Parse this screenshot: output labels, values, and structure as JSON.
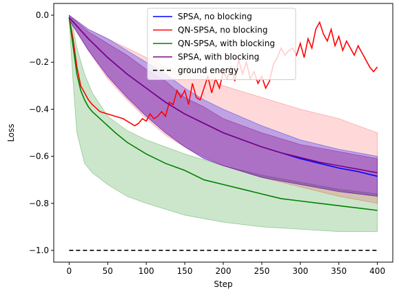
{
  "chart_data": {
    "type": "line",
    "title": "",
    "xlabel": "Step",
    "ylabel": "Loss",
    "xlim": [
      -20,
      420
    ],
    "ylim": [
      -1.05,
      0.05
    ],
    "x_ticks": [
      0,
      50,
      100,
      150,
      200,
      250,
      300,
      350,
      400
    ],
    "y_ticks": [
      0.0,
      -0.2,
      -0.4,
      -0.6,
      -0.8,
      -1.0
    ],
    "x_tick_labels": [
      "0",
      "50",
      "100",
      "150",
      "200",
      "250",
      "300",
      "350",
      "400"
    ],
    "y_tick_labels": [
      "0.0",
      "−0.2",
      "−0.4",
      "−0.6",
      "−0.8",
      "−1.0"
    ],
    "grid": false,
    "legend_position": "top-center",
    "bands": [
      {
        "series": "QN-SPSA, with blocking",
        "color": "#008000",
        "opacity": 0.2,
        "x": [
          0,
          5,
          10,
          20,
          30,
          50,
          75,
          100,
          150,
          200,
          250,
          300,
          350,
          400
        ],
        "lower": [
          -0.02,
          -0.28,
          -0.5,
          -0.63,
          -0.67,
          -0.72,
          -0.77,
          -0.8,
          -0.85,
          -0.88,
          -0.9,
          -0.91,
          -0.92,
          -0.92
        ],
        "upper": [
          -0.01,
          -0.05,
          -0.14,
          -0.25,
          -0.33,
          -0.43,
          -0.49,
          -0.53,
          -0.59,
          -0.64,
          -0.68,
          -0.71,
          -0.74,
          -0.76
        ]
      },
      {
        "series": "QN-SPSA, no blocking",
        "color": "#ff0000",
        "opacity": 0.15,
        "x": [
          0,
          25,
          50,
          75,
          100,
          125,
          150,
          175,
          200,
          250,
          300,
          350,
          400
        ],
        "lower": [
          -0.02,
          -0.15,
          -0.27,
          -0.36,
          -0.44,
          -0.51,
          -0.56,
          -0.6,
          -0.64,
          -0.69,
          -0.73,
          -0.77,
          -0.8
        ],
        "upper": [
          0.0,
          -0.06,
          -0.1,
          -0.14,
          -0.18,
          -0.22,
          -0.24,
          -0.26,
          -0.3,
          -0.35,
          -0.4,
          -0.44,
          -0.5
        ]
      },
      {
        "series": "SPSA, no blocking",
        "color": "#0000ff",
        "opacity": 0.25,
        "x": [
          0,
          25,
          50,
          75,
          100,
          125,
          150,
          175,
          200,
          250,
          300,
          350,
          400
        ],
        "lower": [
          -0.02,
          -0.15,
          -0.26,
          -0.35,
          -0.43,
          -0.5,
          -0.56,
          -0.61,
          -0.64,
          -0.69,
          -0.72,
          -0.75,
          -0.77
        ],
        "upper": [
          0.0,
          -0.06,
          -0.1,
          -0.15,
          -0.2,
          -0.25,
          -0.31,
          -0.36,
          -0.4,
          -0.47,
          -0.53,
          -0.57,
          -0.6
        ]
      },
      {
        "series": "SPSA, with blocking",
        "color": "#800080",
        "opacity": 0.3,
        "x": [
          0,
          25,
          50,
          75,
          100,
          125,
          150,
          175,
          200,
          250,
          300,
          350,
          400
        ],
        "lower": [
          -0.02,
          -0.15,
          -0.26,
          -0.35,
          -0.43,
          -0.5,
          -0.56,
          -0.61,
          -0.64,
          -0.69,
          -0.72,
          -0.75,
          -0.77
        ],
        "upper": [
          0.0,
          -0.07,
          -0.12,
          -0.17,
          -0.23,
          -0.28,
          -0.35,
          -0.39,
          -0.44,
          -0.5,
          -0.55,
          -0.58,
          -0.61
        ]
      }
    ],
    "series": [
      {
        "name": "SPSA, no blocking",
        "color": "#0000ff",
        "dashed": false,
        "x": [
          0,
          25,
          50,
          75,
          100,
          125,
          150,
          175,
          200,
          225,
          250,
          275,
          300,
          325,
          350,
          375,
          400
        ],
        "y": [
          -0.01,
          -0.1,
          -0.18,
          -0.25,
          -0.31,
          -0.37,
          -0.42,
          -0.46,
          -0.5,
          -0.53,
          -0.56,
          -0.585,
          -0.61,
          -0.63,
          -0.65,
          -0.665,
          -0.685
        ]
      },
      {
        "name": "QN-SPSA, no blocking",
        "color": "#ff0000",
        "dashed": false,
        "x": [
          0,
          5,
          10,
          15,
          20,
          25,
          30,
          40,
          50,
          60,
          70,
          80,
          85,
          90,
          95,
          100,
          105,
          110,
          115,
          120,
          125,
          130,
          135,
          140,
          145,
          150,
          155,
          160,
          165,
          170,
          175,
          180,
          185,
          190,
          195,
          200,
          205,
          210,
          215,
          220,
          225,
          230,
          235,
          240,
          245,
          250,
          255,
          260,
          265,
          270,
          275,
          280,
          285,
          290,
          295,
          300,
          305,
          310,
          315,
          320,
          325,
          330,
          335,
          340,
          345,
          350,
          355,
          360,
          365,
          370,
          375,
          380,
          385,
          390,
          395,
          400
        ],
        "y": [
          -0.01,
          -0.1,
          -0.22,
          -0.3,
          -0.33,
          -0.36,
          -0.38,
          -0.41,
          -0.42,
          -0.43,
          -0.44,
          -0.46,
          -0.47,
          -0.46,
          -0.44,
          -0.45,
          -0.42,
          -0.44,
          -0.43,
          -0.41,
          -0.43,
          -0.37,
          -0.38,
          -0.32,
          -0.35,
          -0.32,
          -0.38,
          -0.29,
          -0.35,
          -0.36,
          -0.31,
          -0.26,
          -0.33,
          -0.27,
          -0.31,
          -0.24,
          -0.27,
          -0.22,
          -0.28,
          -0.19,
          -0.25,
          -0.2,
          -0.27,
          -0.24,
          -0.29,
          -0.26,
          -0.31,
          -0.28,
          -0.21,
          -0.18,
          -0.14,
          -0.17,
          -0.15,
          -0.14,
          -0.17,
          -0.12,
          -0.18,
          -0.1,
          -0.14,
          -0.06,
          -0.03,
          -0.08,
          -0.11,
          -0.06,
          -0.13,
          -0.09,
          -0.15,
          -0.11,
          -0.14,
          -0.17,
          -0.13,
          -0.16,
          -0.19,
          -0.22,
          -0.24,
          -0.22
        ]
      },
      {
        "name": "QN-SPSA, with blocking",
        "color": "#008000",
        "dashed": false,
        "x": [
          0,
          5,
          10,
          15,
          20,
          25,
          30,
          40,
          50,
          60,
          75,
          100,
          125,
          150,
          175,
          200,
          225,
          250,
          275,
          300,
          325,
          350,
          375,
          400
        ],
        "y": [
          -0.01,
          -0.13,
          -0.25,
          -0.32,
          -0.36,
          -0.39,
          -0.41,
          -0.44,
          -0.47,
          -0.5,
          -0.54,
          -0.59,
          -0.63,
          -0.66,
          -0.7,
          -0.72,
          -0.74,
          -0.76,
          -0.78,
          -0.79,
          -0.8,
          -0.81,
          -0.82,
          -0.83
        ]
      },
      {
        "name": "SPSA, with blocking",
        "color": "#800080",
        "dashed": false,
        "x": [
          0,
          25,
          50,
          75,
          100,
          125,
          150,
          175,
          200,
          225,
          250,
          275,
          300,
          325,
          350,
          375,
          400
        ],
        "y": [
          -0.01,
          -0.1,
          -0.18,
          -0.25,
          -0.31,
          -0.37,
          -0.42,
          -0.46,
          -0.5,
          -0.53,
          -0.56,
          -0.585,
          -0.605,
          -0.625,
          -0.64,
          -0.655,
          -0.67
        ]
      },
      {
        "name": "ground energy",
        "color": "#000000",
        "dashed": true,
        "x": [
          0,
          400
        ],
        "y": [
          -1.0,
          -1.0
        ]
      }
    ]
  }
}
